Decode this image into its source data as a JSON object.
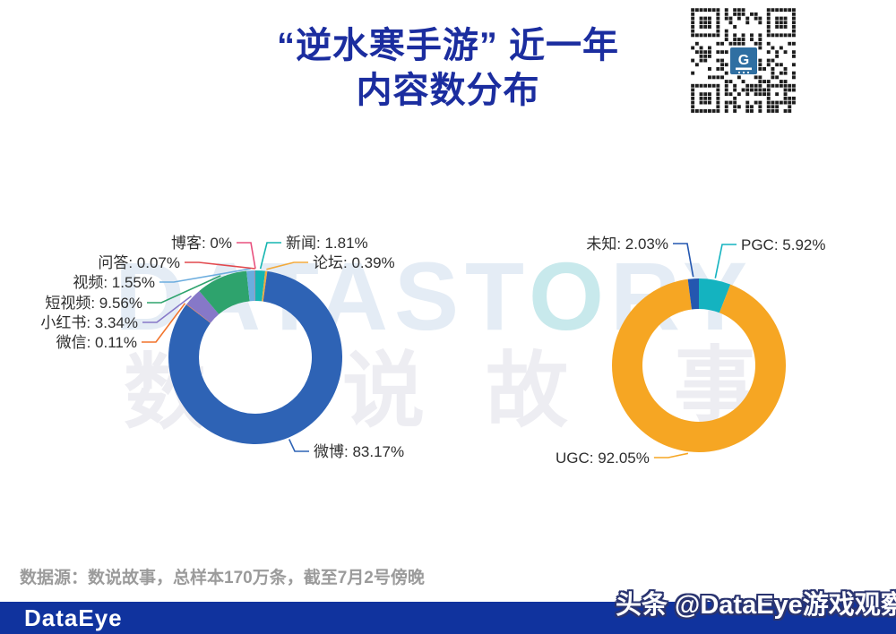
{
  "title": {
    "line1": "“逆水寒手游” 近一年",
    "line2": "内容数分布"
  },
  "chart_data": [
    {
      "type": "pie",
      "variant": "donut",
      "title": "",
      "label_format": "{name}: {value}%",
      "labels": [
        "新闻",
        "论坛",
        "微博",
        "微信",
        "小红书",
        "短视频",
        "视频",
        "问答",
        "博客"
      ],
      "values": [
        1.81,
        0.39,
        83.17,
        0.11,
        3.34,
        9.56,
        1.55,
        0.07,
        0
      ],
      "colors": [
        "#15b5b0",
        "#f2a93b",
        "#2e63b5",
        "#f2742c",
        "#8678c8",
        "#2ea36d",
        "#6cadde",
        "#e2484d",
        "#e8517e"
      ]
    },
    {
      "type": "pie",
      "variant": "donut",
      "title": "",
      "label_format": "{name}: {value}%",
      "labels": [
        "PGC",
        "UGC",
        "未知"
      ],
      "values": [
        5.92,
        92.05,
        2.03
      ],
      "colors": [
        "#14b3c0",
        "#f6a623",
        "#2457b0"
      ]
    }
  ],
  "watermark": {
    "en": "DATASTORY",
    "cn": "数说故事"
  },
  "source_note": "数据源：数说故事，总样本170万条，截至7月2号傍晚",
  "footer": {
    "logo": "DataEye",
    "handle": "头条 @DataEye游戏观察"
  },
  "theme": {
    "title_color": "#1b2d9f",
    "footer_bg": "#10339e",
    "source_color": "#9b9b9b",
    "label_color": "#2e2e2e"
  }
}
